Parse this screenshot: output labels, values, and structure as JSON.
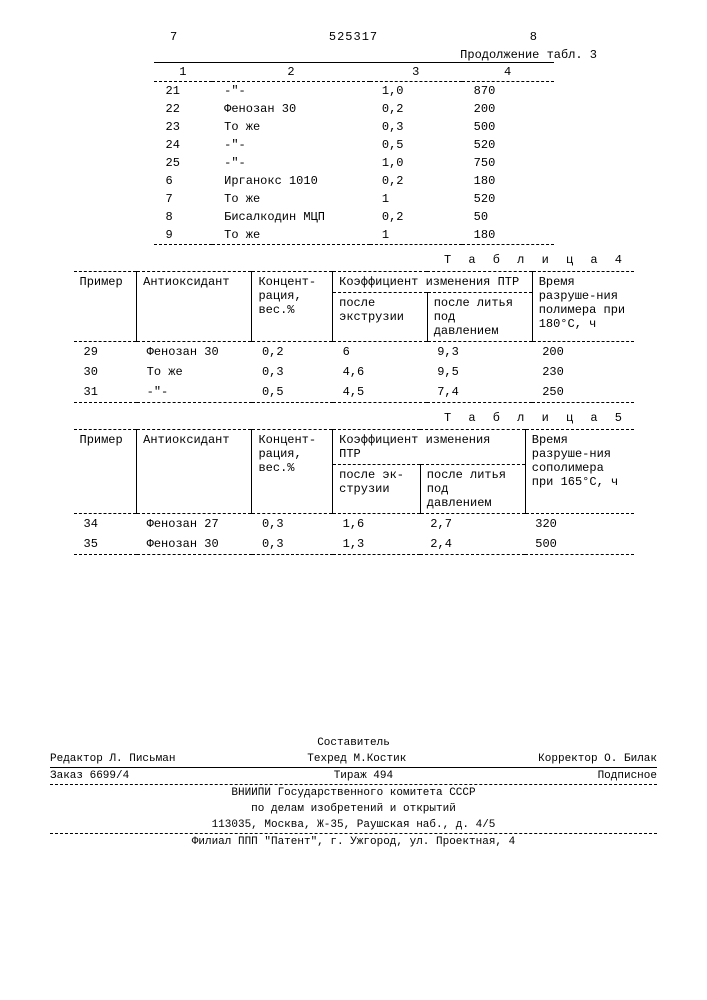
{
  "header": {
    "left_page": "7",
    "doc_number": "525317",
    "right_page": "8"
  },
  "table3": {
    "caption": "Продолжение табл. 3",
    "columns": [
      "1",
      "2",
      "3",
      "4"
    ],
    "rows": [
      [
        "21",
        "-\"-",
        "1,0",
        "870"
      ],
      [
        "22",
        "Фенозан 30",
        "0,2",
        "200"
      ],
      [
        "23",
        "То же",
        "0,3",
        "500"
      ],
      [
        "24",
        "-\"-",
        "0,5",
        "520"
      ],
      [
        "25",
        "-\"-",
        "1,0",
        "750"
      ],
      [
        "6",
        "Ирганокс 1010",
        "0,2",
        "180"
      ],
      [
        "7",
        "То же",
        "1",
        "520"
      ],
      [
        "8",
        "Бисалкодин МЦП",
        "0,2",
        "50"
      ],
      [
        "9",
        "То же",
        "1",
        "180"
      ]
    ]
  },
  "table4": {
    "caption": "Т а б л и ц а   4",
    "columns": {
      "c1": "Пример",
      "c2": "Антиоксидант",
      "c3": "Концент-рация, вес.%",
      "c4": "Коэффициент изменения ПТР",
      "c4a": "после экструзии",
      "c4b": "после литья под давлением",
      "c5": "Время разруше-ния полимера при 180°С, ч"
    },
    "rows": [
      [
        "29",
        "Фенозан 30",
        "0,2",
        "6",
        "9,3",
        "200"
      ],
      [
        "30",
        "То же",
        "0,3",
        "4,6",
        "9,5",
        "230"
      ],
      [
        "31",
        "-\"-",
        "0,5",
        "4,5",
        "7,4",
        "250"
      ]
    ]
  },
  "table5": {
    "caption": "Т а б л и ц а   5",
    "columns": {
      "c1": "Пример",
      "c2": "Антиоксидант",
      "c3": "Концент-рация, вес.%",
      "c4": "Коэффициент изменения ПТР",
      "c4a": "после эк-струзии",
      "c4b": "после литья под давлением",
      "c5": "Время разруше-ния сополимера при 165°С, ч"
    },
    "rows": [
      [
        "34",
        "Фенозан 27",
        "0,3",
        "1,6",
        "2,7",
        "320"
      ],
      [
        "35",
        "Фенозан 30",
        "0,3",
        "1,3",
        "2,4",
        "500"
      ]
    ]
  },
  "footer": {
    "editor": "Редактор Л. Письман",
    "compiler_label": "Составитель",
    "techred": "Техред М.Костик",
    "corrector": "Корректор О. Билак",
    "order": "Заказ 6699/4",
    "tirazh": "Тираж 494",
    "subscription": "Подписное",
    "org1": "ВНИИПИ Государственного комитета СССР",
    "org2": "по делам изобретений и открытий",
    "org3": "113035, Москва, Ж-35, Раушская наб., д. 4/5",
    "branch": "Филиал ППП \"Патент\", г. Ужгород, ул. Проектная, 4"
  }
}
